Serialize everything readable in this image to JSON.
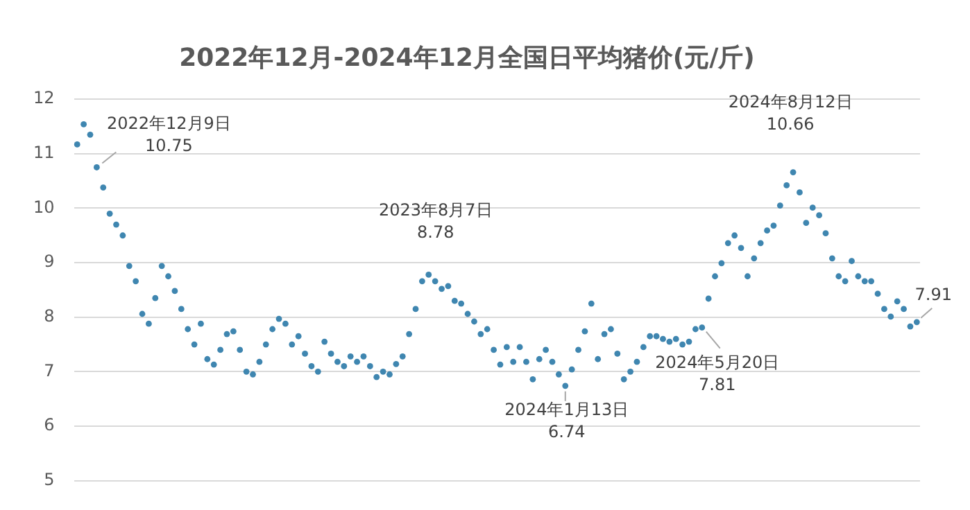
{
  "chart_data": {
    "type": "scatter",
    "title": "2022年12月-2024年12月全国日平均猪价(元/斤)",
    "categories": [
      null,
      null,
      null,
      null,
      null,
      null,
      null,
      null,
      null,
      null,
      null,
      null,
      null,
      null,
      null,
      null,
      null,
      null,
      null,
      null,
      null,
      null,
      null,
      null,
      null,
      null,
      null,
      null,
      null,
      null,
      null,
      null,
      null,
      null,
      null,
      null,
      null,
      null,
      null,
      null,
      null,
      null,
      null,
      null,
      null,
      null,
      null,
      null,
      null,
      null,
      null,
      null,
      null,
      null,
      null,
      null,
      null,
      null,
      null,
      null,
      null,
      null,
      null,
      null,
      null,
      null,
      null,
      null,
      null,
      null,
      null,
      null,
      null,
      null,
      null,
      null,
      null,
      null,
      null,
      null,
      null,
      null,
      null,
      null,
      null,
      null,
      null,
      null,
      null,
      null,
      null,
      null,
      null,
      null,
      null,
      null,
      null,
      null,
      null,
      null,
      null,
      null,
      null,
      null,
      null,
      null,
      null,
      null,
      null,
      null,
      null,
      null,
      null,
      null,
      null,
      null,
      null,
      null,
      null,
      null,
      null,
      null,
      null,
      null,
      null,
      null,
      null,
      null,
      null,
      null
    ],
    "series": [
      {
        "color": "#3f86b0",
        "values": [
          11.17,
          11.54,
          11.35,
          10.75,
          10.38,
          9.9,
          9.7,
          9.5,
          8.94,
          8.66,
          8.06,
          7.88,
          8.35,
          8.94,
          8.75,
          8.48,
          8.15,
          7.78,
          7.5,
          7.88,
          7.23,
          7.13,
          7.4,
          7.69,
          7.74,
          7.4,
          7.0,
          6.95,
          7.18,
          7.5,
          7.78,
          7.97,
          7.88,
          7.5,
          7.65,
          7.33,
          7.1,
          7.0,
          7.55,
          7.33,
          7.18,
          7.1,
          7.28,
          7.18,
          7.28,
          7.1,
          6.9,
          7.0,
          6.95,
          7.14,
          7.28,
          7.69,
          8.15,
          8.66,
          8.78,
          8.66,
          8.52,
          8.57,
          8.3,
          8.25,
          8.06,
          7.92,
          7.69,
          7.78,
          7.4,
          7.13,
          7.45,
          7.18,
          7.45,
          7.18,
          6.86,
          7.23,
          7.4,
          7.18,
          6.95,
          6.74,
          7.04,
          7.4,
          7.74,
          8.25,
          7.23,
          7.69,
          7.78,
          7.33,
          6.86,
          7.0,
          7.18,
          7.45,
          7.65,
          7.65,
          7.6,
          7.55,
          7.6,
          7.5,
          7.55,
          7.78,
          7.81,
          8.34,
          8.75,
          8.99,
          9.36,
          9.5,
          9.27,
          8.75,
          9.08,
          9.36,
          9.59,
          9.68,
          10.05,
          10.42,
          10.66,
          10.29,
          9.73,
          10.01,
          9.87,
          9.54,
          9.08,
          8.75,
          8.66,
          9.03,
          8.75,
          8.66,
          8.66,
          8.43,
          8.15,
          8.01,
          8.29,
          8.15,
          7.83,
          7.91
        ]
      }
    ],
    "ylim": [
      5,
      12
    ],
    "yticks": [
      5,
      6,
      7,
      8,
      9,
      10,
      11,
      12
    ],
    "grid": "y",
    "legend": false,
    "tick_labels": "y",
    "marker": "circle",
    "annotations": [
      "2022年12月9日\n10.75",
      "2023年8月7日\n8.78",
      "2024年1月13日\n6.74",
      "2024年5月20日\n7.81",
      "2024年8月12日\n10.66",
      "7.91"
    ]
  }
}
